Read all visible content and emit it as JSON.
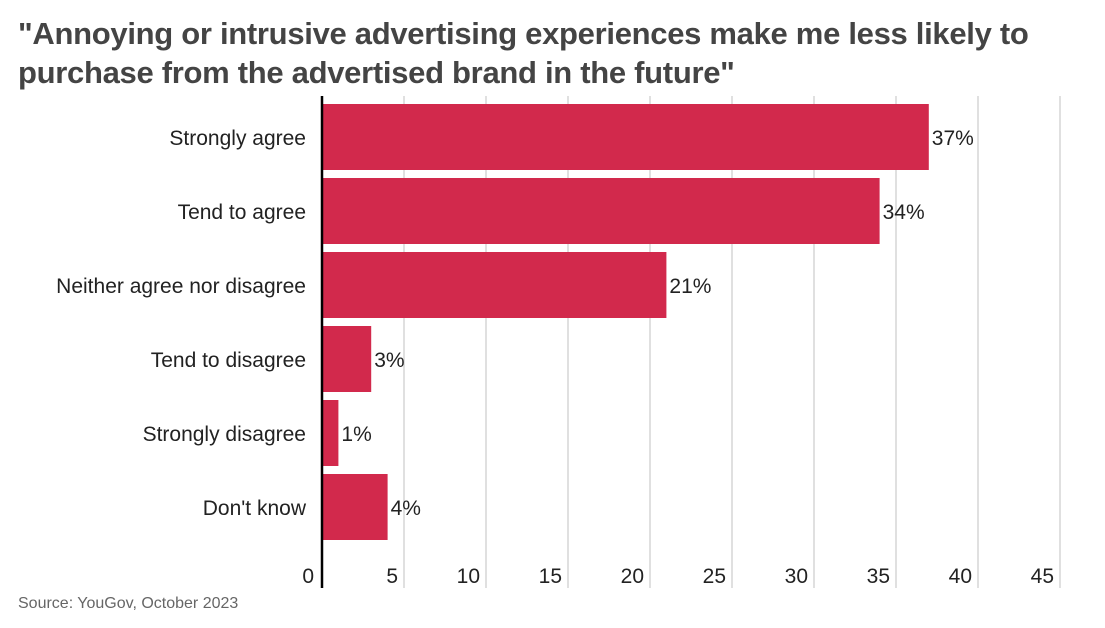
{
  "chart_data": {
    "type": "bar",
    "orientation": "horizontal",
    "title": "\"Annoying or intrusive advertising experiences make me less likely to purchase from the advertised brand in the future\"",
    "source": "Source: YouGov, October 2023",
    "categories": [
      "Strongly agree",
      "Tend to agree",
      "Neither agree nor disagree",
      "Tend to disagree",
      "Strongly disagree",
      "Don't know"
    ],
    "values": [
      37,
      34,
      21,
      3,
      1,
      4
    ],
    "value_labels": [
      "37%",
      "34%",
      "21%",
      "3%",
      "1%",
      "4%"
    ],
    "xlim": [
      0,
      45
    ],
    "xticks": [
      0,
      5,
      10,
      15,
      20,
      25,
      30,
      35,
      40,
      45
    ],
    "grid": true,
    "bar_color": "#d2294c",
    "grid_color": "#cccccc",
    "axis_color": "#000000"
  }
}
